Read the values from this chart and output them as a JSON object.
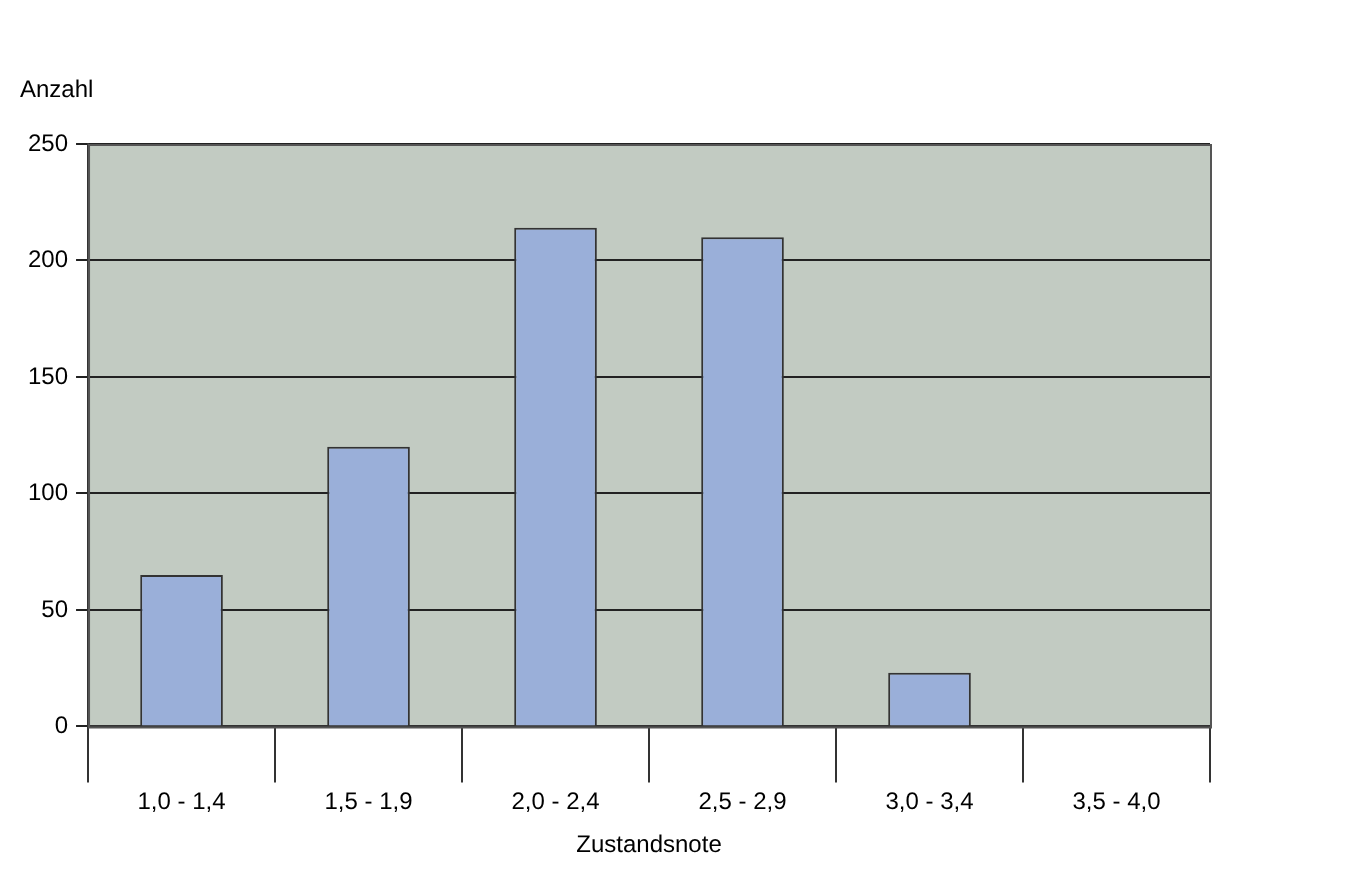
{
  "chart_data": {
    "type": "bar",
    "xlabel": "Zustandsnote",
    "ylabel": "Anzahl",
    "categories": [
      "1,0 - 1,4",
      "1,5 - 1,9",
      "2,0 - 2,4",
      "2,5 - 2,9",
      "3,0 - 3,4",
      "3,5 - 4,0"
    ],
    "values": [
      65,
      120,
      214,
      210,
      23,
      0
    ],
    "color": "#9aafd9",
    "ylim": [
      0,
      250
    ],
    "yticks": [
      0,
      50,
      100,
      150,
      200,
      250
    ],
    "grid": "y",
    "legend": false
  }
}
